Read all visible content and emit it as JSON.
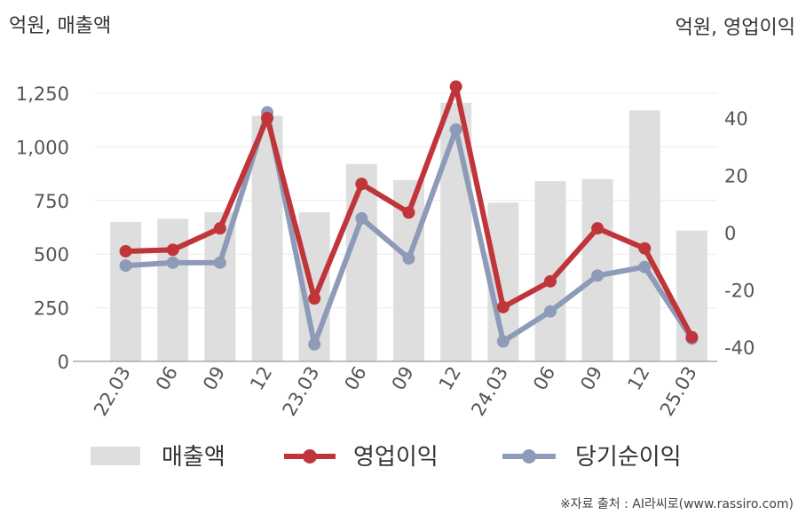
{
  "chart_data": {
    "type": "bar+line",
    "left_unit": "억원, 매출액",
    "right_unit": "억원, 영업이익",
    "categories": [
      "22.03",
      "06",
      "09",
      "12",
      "23.03",
      "06",
      "09",
      "12",
      "24.03",
      "06",
      "09",
      "12",
      "25.03"
    ],
    "left_axis": {
      "ylim": [
        0,
        1400
      ],
      "ticks": [
        "0",
        "250",
        "500",
        "750",
        "1,000",
        "1,250"
      ],
      "tick_values": [
        0,
        250,
        500,
        750,
        1000,
        1250
      ]
    },
    "right_axis": {
      "ylim": [
        -45,
        55
      ],
      "ticks": [
        "-40",
        "-20",
        "0",
        "20",
        "40"
      ],
      "tick_values": [
        -40,
        -20,
        0,
        20,
        40
      ]
    },
    "series": [
      {
        "name": "매출액",
        "kind": "bar",
        "axis": "left",
        "color": "#dedede",
        "values": [
          650,
          665,
          695,
          1145,
          695,
          920,
          845,
          1205,
          740,
          840,
          850,
          1170,
          610
        ]
      },
      {
        "name": "영업이익",
        "kind": "line",
        "axis": "right",
        "color": "#c0353a",
        "values": [
          -6.5,
          -6,
          1.5,
          40,
          -23,
          17,
          7,
          51,
          -26,
          -17,
          1.5,
          -5.5,
          -36.5
        ]
      },
      {
        "name": "당기순이익",
        "kind": "line",
        "axis": "right",
        "color": "#8e9bb8",
        "values": [
          -11.5,
          -10.5,
          -10.5,
          42,
          -39,
          5,
          -9,
          36,
          -38,
          -27.5,
          -15,
          -12,
          -37
        ]
      }
    ],
    "grid": true,
    "legend_position": "bottom",
    "source": "※자료 출처 : AI라씨로(www.rassiro.com)"
  }
}
